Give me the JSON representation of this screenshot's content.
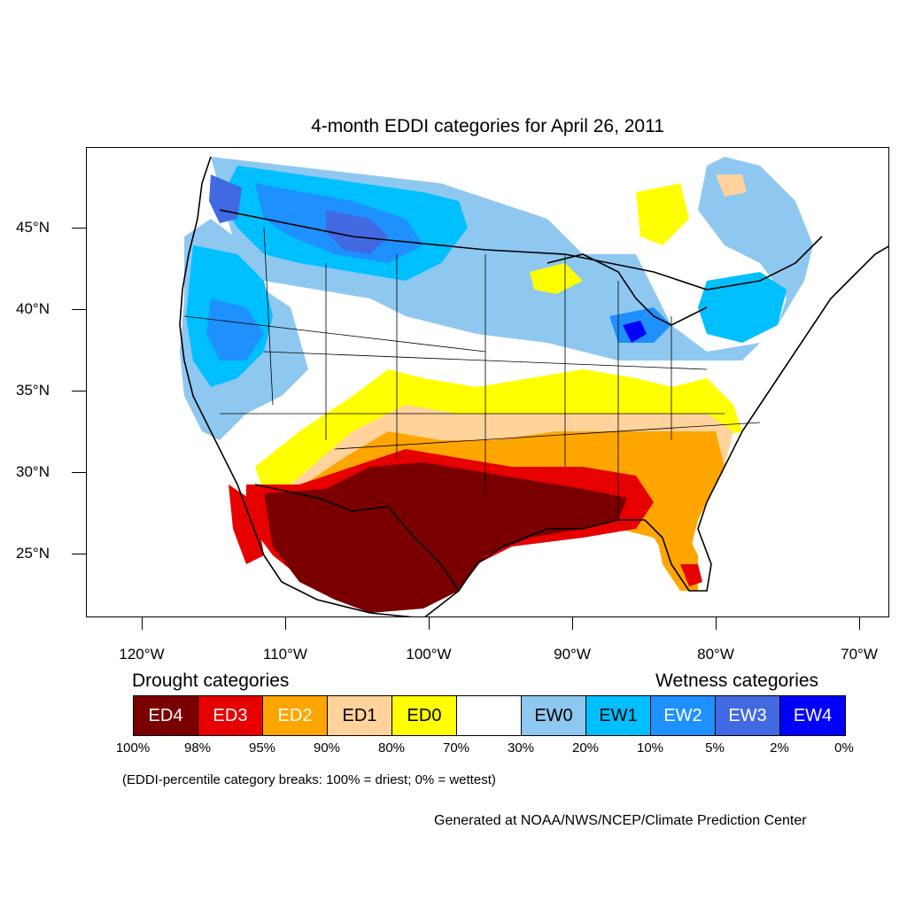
{
  "title": "4-month EDDI categories for April 26, 2011",
  "map": {
    "lon_range": [
      -124.5,
      -68.5
    ],
    "lat_range": [
      21,
      50
    ],
    "lat_labels": [
      {
        "lat": 45,
        "text": "45°N"
      },
      {
        "lat": 40,
        "text": "40°N"
      },
      {
        "lat": 35,
        "text": "35°N"
      },
      {
        "lat": 30,
        "text": "30°N"
      },
      {
        "lat": 25,
        "text": "25°N"
      }
    ],
    "lon_labels": [
      {
        "lon": -120,
        "text": "120°W"
      },
      {
        "lon": -110,
        "text": "110°W"
      },
      {
        "lon": -100,
        "text": "100°W"
      },
      {
        "lon": -90,
        "text": "90°W"
      },
      {
        "lon": -80,
        "text": "80°W"
      },
      {
        "lon": -70,
        "text": "70°W"
      }
    ]
  },
  "legend": {
    "drought_heading": "Drought categories",
    "wetness_heading": "Wetness categories",
    "categories": [
      {
        "label": "ED4",
        "color": "#7a0000",
        "text_color": "#ffffff"
      },
      {
        "label": "ED3",
        "color": "#e60000",
        "text_color": "#ffffff"
      },
      {
        "label": "ED2",
        "color": "#ffa500",
        "text_color": "#ffffff"
      },
      {
        "label": "ED1",
        "color": "#ffd39b",
        "text_color": "#000000"
      },
      {
        "label": "ED0",
        "color": "#ffff00",
        "text_color": "#000000"
      },
      {
        "label": "",
        "color": "#ffffff",
        "text_color": "#000000"
      },
      {
        "label": "EW0",
        "color": "#8ec8f0",
        "text_color": "#000000"
      },
      {
        "label": "EW1",
        "color": "#00bfff",
        "text_color": "#000000"
      },
      {
        "label": "EW2",
        "color": "#1e90ff",
        "text_color": "#ffffff"
      },
      {
        "label": "EW3",
        "color": "#4169e1",
        "text_color": "#ffffff"
      },
      {
        "label": "EW4",
        "color": "#0000ff",
        "text_color": "#ffffff"
      }
    ],
    "percentiles": [
      "100%",
      "98%",
      "95%",
      "90%",
      "80%",
      "70%",
      "30%",
      "20%",
      "10%",
      "5%",
      "2%",
      "0%"
    ],
    "note": "(EDDI-percentile category breaks: 100% = driest; 0% = wettest)"
  },
  "credit": "Generated at NOAA/NWS/NCEP/Climate Prediction Center"
}
